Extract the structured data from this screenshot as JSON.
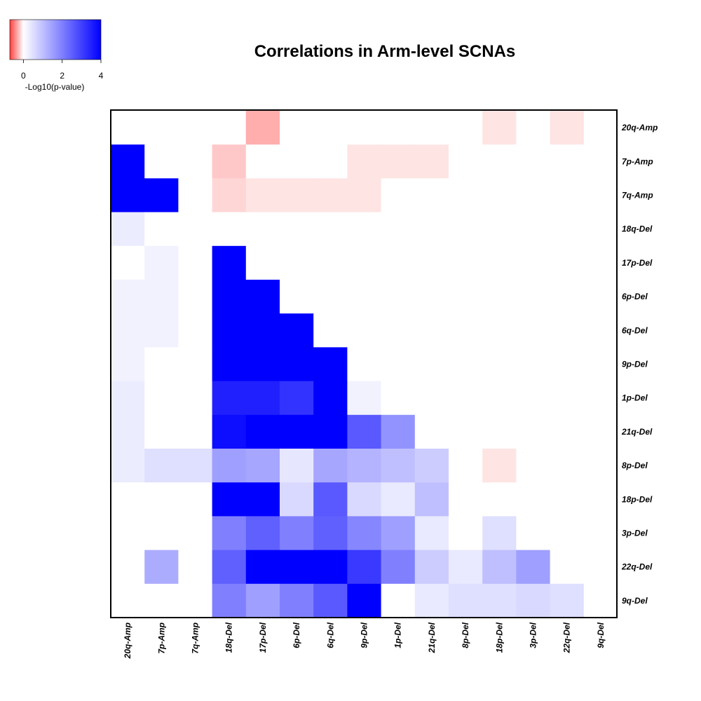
{
  "chart_data": {
    "type": "heatmap",
    "title": "Correlations in Arm-level SCNAs",
    "rows": [
      "20q-Amp",
      "7p-Amp",
      "7q-Amp",
      "18q-Del",
      "17p-Del",
      "6p-Del",
      "6q-Del",
      "9p-Del",
      "1p-Del",
      "21q-Del",
      "8p-Del",
      "18p-Del",
      "3p-Del",
      "22q-Del",
      "9q-Del"
    ],
    "columns": [
      "20q-Amp",
      "7p-Amp",
      "7q-Amp",
      "18q-Del",
      "17p-Del",
      "6p-Del",
      "6q-Del",
      "9p-Del",
      "1p-Del",
      "21q-Del",
      "8p-Del",
      "18p-Del",
      "3p-Del",
      "22q-Del",
      "9q-Del"
    ],
    "values": [
      [
        0,
        0,
        0,
        0,
        -0.3,
        0,
        0,
        0,
        0,
        0,
        0,
        -0.1,
        0,
        -0.1,
        0
      ],
      [
        4,
        0,
        0,
        -0.2,
        0,
        0,
        0,
        -0.1,
        -0.1,
        -0.1,
        0,
        0,
        0,
        0,
        0
      ],
      [
        4,
        4,
        0,
        -0.15,
        -0.1,
        -0.1,
        -0.1,
        -0.1,
        0,
        0,
        0,
        0,
        0,
        0,
        0
      ],
      [
        0.3,
        0,
        0,
        0,
        0,
        0,
        0,
        0,
        0,
        0,
        0,
        0,
        0,
        0,
        0
      ],
      [
        0,
        0.2,
        0,
        4,
        0,
        0,
        0,
        0,
        0,
        0,
        0,
        0,
        0,
        0,
        0
      ],
      [
        0.2,
        0.2,
        0,
        4,
        4,
        0,
        0,
        0,
        0,
        0,
        0,
        0,
        0,
        0,
        0
      ],
      [
        0.2,
        0.2,
        0,
        4,
        4,
        4,
        0,
        0,
        0,
        0,
        0,
        0,
        0,
        0,
        0
      ],
      [
        0.2,
        0,
        0,
        4,
        4,
        4,
        4,
        0,
        0,
        0,
        0,
        0,
        0,
        0,
        0
      ],
      [
        0.3,
        0,
        0,
        3.5,
        3.5,
        3.2,
        4,
        0.2,
        0,
        0,
        0,
        0,
        0,
        0,
        0
      ],
      [
        0.3,
        0,
        0,
        3.8,
        4,
        4,
        4,
        2.6,
        1.7,
        0,
        0,
        0,
        0,
        0,
        0
      ],
      [
        0.3,
        0.5,
        0.5,
        1.5,
        1.4,
        0.4,
        1.4,
        1.2,
        1.0,
        0.8,
        0,
        -0.1,
        0,
        0,
        0
      ],
      [
        0,
        0,
        0,
        4,
        4,
        0.6,
        2.6,
        0.6,
        0.35,
        1.0,
        0,
        0,
        0,
        0,
        0
      ],
      [
        0,
        0,
        0,
        2.0,
        2.5,
        2.0,
        2.5,
        1.9,
        1.5,
        0.35,
        0,
        0.5,
        0,
        0,
        0
      ],
      [
        0,
        1.3,
        0,
        2.5,
        4,
        4,
        4,
        3.1,
        2.0,
        0.8,
        0.35,
        1.0,
        1.5,
        0,
        0
      ],
      [
        0,
        0,
        0,
        2.0,
        1.5,
        2.0,
        2.6,
        4,
        0,
        0.35,
        0.5,
        0.5,
        0.6,
        0.5,
        0
      ]
    ],
    "legend": {
      "title": "-Log10(p-value)",
      "ticks": [
        "0",
        "2",
        "4"
      ],
      "min": -0.7,
      "max": 4,
      "colors": {
        "negative": "#ff0000",
        "zero": "#ffffff",
        "positive": "#0000ff"
      }
    }
  }
}
